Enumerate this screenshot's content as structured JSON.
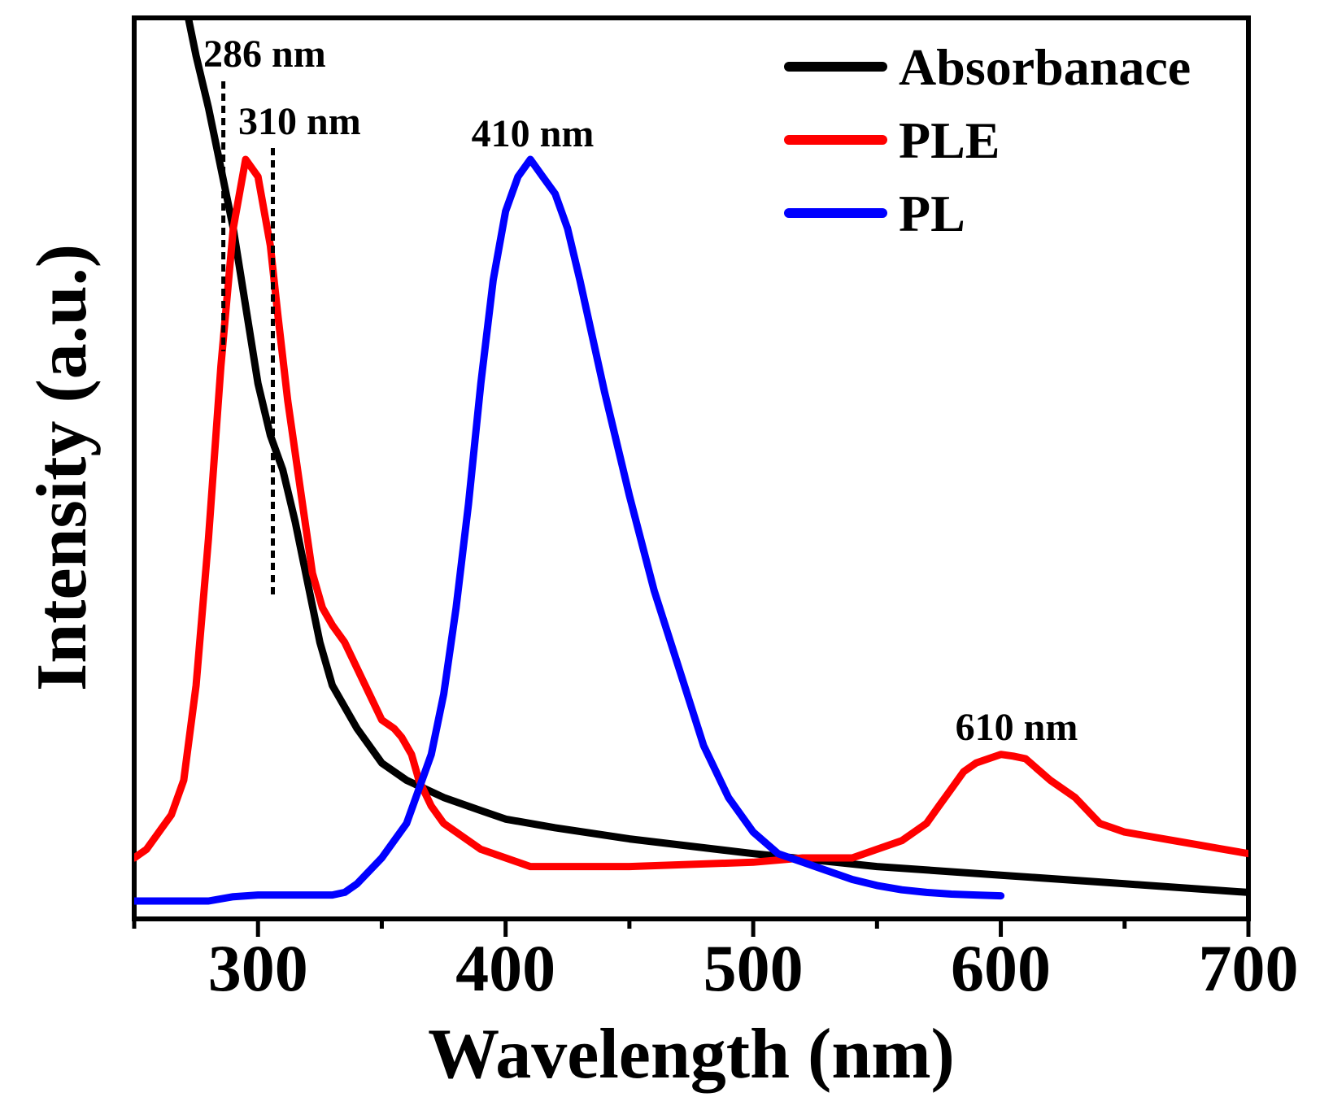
{
  "chart_data": {
    "type": "line",
    "title": "",
    "xlabel": "Wavelength (nm)",
    "ylabel": "Intensity (a.u.)",
    "xlim": [
      250,
      700
    ],
    "ylim": [
      0,
      1.0
    ],
    "x_ticks": [
      300,
      400,
      500,
      600,
      700
    ],
    "x_tick_labels": [
      "300",
      "400",
      "500",
      "600",
      "700"
    ],
    "grid": false,
    "legend_position": "top-right",
    "series": [
      {
        "name": "Absorbanace",
        "color": "#000000",
        "x": [
          270,
          275,
          280,
          285,
          290,
          295,
          300,
          305,
          310,
          315,
          320,
          325,
          330,
          340,
          350,
          360,
          375,
          390,
          400,
          420,
          450,
          500,
          550,
          600,
          650,
          700
        ],
        "y": [
          1.05,
          0.98,
          0.92,
          0.85,
          0.78,
          0.69,
          0.6,
          0.54,
          0.5,
          0.44,
          0.37,
          0.3,
          0.25,
          0.2,
          0.16,
          0.14,
          0.12,
          0.105,
          0.095,
          0.085,
          0.072,
          0.055,
          0.04,
          0.03,
          0.02,
          0.01
        ]
      },
      {
        "name": "PLE",
        "color": "#ff0000",
        "x": [
          250,
          255,
          260,
          265,
          270,
          275,
          280,
          285,
          290,
          295,
          300,
          305,
          308,
          312,
          318,
          322,
          326,
          330,
          335,
          340,
          345,
          350,
          355,
          358,
          362,
          365,
          370,
          375,
          380,
          390,
          400,
          410,
          420,
          450,
          500,
          520,
          540,
          550,
          560,
          570,
          575,
          580,
          585,
          590,
          595,
          600,
          605,
          610,
          620,
          630,
          640,
          650,
          660,
          670,
          680,
          690,
          700
        ],
        "y": [
          0.05,
          0.06,
          0.08,
          0.1,
          0.14,
          0.25,
          0.42,
          0.62,
          0.78,
          0.86,
          0.84,
          0.76,
          0.68,
          0.58,
          0.46,
          0.38,
          0.34,
          0.32,
          0.3,
          0.27,
          0.24,
          0.21,
          0.2,
          0.19,
          0.17,
          0.14,
          0.11,
          0.09,
          0.08,
          0.06,
          0.05,
          0.04,
          0.04,
          0.04,
          0.045,
          0.05,
          0.05,
          0.06,
          0.07,
          0.09,
          0.11,
          0.13,
          0.15,
          0.16,
          0.165,
          0.17,
          0.168,
          0.165,
          0.14,
          0.12,
          0.09,
          0.08,
          0.075,
          0.07,
          0.065,
          0.06,
          0.055
        ]
      },
      {
        "name": "PL",
        "color": "#0000ff",
        "x": [
          250,
          280,
          290,
          300,
          330,
          335,
          340,
          350,
          360,
          370,
          375,
          380,
          385,
          390,
          395,
          400,
          405,
          410,
          415,
          420,
          425,
          430,
          440,
          450,
          460,
          470,
          480,
          490,
          500,
          510,
          520,
          530,
          540,
          550,
          560,
          570,
          580,
          590,
          600
        ],
        "y": [
          0.0,
          0.0,
          0.005,
          0.007,
          0.007,
          0.01,
          0.02,
          0.05,
          0.09,
          0.17,
          0.24,
          0.34,
          0.46,
          0.6,
          0.72,
          0.8,
          0.84,
          0.86,
          0.84,
          0.82,
          0.78,
          0.72,
          0.59,
          0.47,
          0.36,
          0.27,
          0.18,
          0.12,
          0.08,
          0.055,
          0.045,
          0.035,
          0.025,
          0.018,
          0.013,
          0.01,
          0.008,
          0.007,
          0.006
        ]
      }
    ],
    "annotations": [
      {
        "text": "286 nm",
        "x": 286
      },
      {
        "text": "310 nm",
        "x": 306
      },
      {
        "text": "410 nm",
        "x": 410
      },
      {
        "text": "610 nm",
        "x": 604
      }
    ]
  }
}
